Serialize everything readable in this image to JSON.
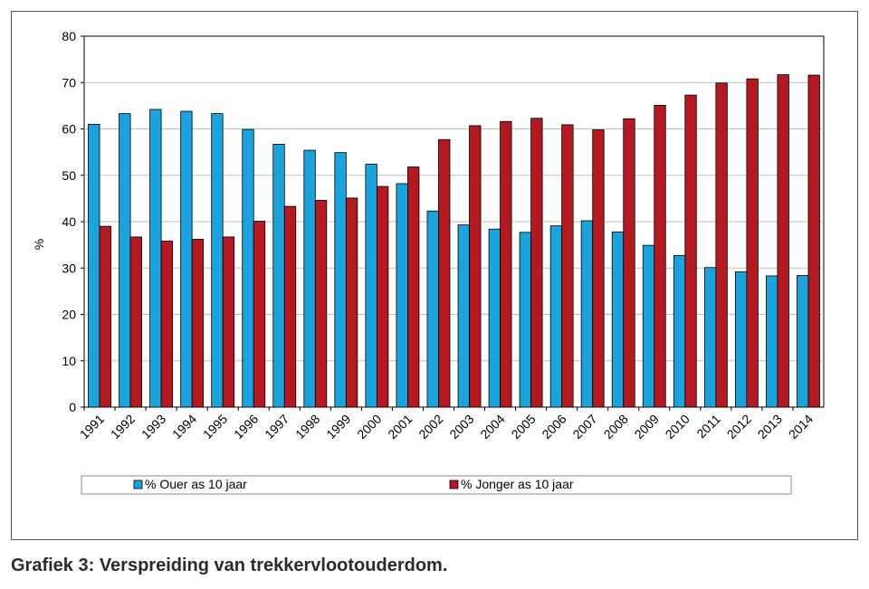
{
  "caption": "Grafiek 3: Verspreiding van trekkervlootouderdom.",
  "chart_data": {
    "type": "bar",
    "ylabel": "%",
    "ylim": [
      0,
      80
    ],
    "yticks": [
      0,
      10,
      20,
      30,
      40,
      50,
      60,
      70,
      80
    ],
    "grid": "horizontal",
    "legend_placement": "bottom",
    "categories": [
      "1991",
      "1992",
      "1993",
      "1994",
      "1995",
      "1996",
      "1997",
      "1998",
      "1999",
      "2000",
      "2001",
      "2002",
      "2003",
      "2004",
      "2005",
      "2006",
      "2007",
      "2008",
      "2009",
      "2010",
      "2011",
      "2012",
      "2013",
      "2014"
    ],
    "series": [
      {
        "name": "% Ouer as 10 jaar",
        "color": "#1aa3dc",
        "values": [
          61,
          63.3,
          64.2,
          63.8,
          63.3,
          59.9,
          56.7,
          55.4,
          54.9,
          52.4,
          48.2,
          42.3,
          39.3,
          38.4,
          37.7,
          39.1,
          40.2,
          37.8,
          34.9,
          32.7,
          30.1,
          29.2,
          28.3,
          28.4
        ]
      },
      {
        "name": "% Jonger as 10 jaar",
        "color": "#b5181f",
        "values": [
          39,
          36.7,
          35.8,
          36.2,
          36.7,
          40.1,
          43.3,
          44.6,
          45.1,
          47.6,
          51.8,
          57.7,
          60.7,
          61.6,
          62.3,
          60.9,
          59.8,
          62.2,
          65.1,
          67.3,
          69.9,
          70.8,
          71.7,
          71.6
        ]
      }
    ]
  }
}
